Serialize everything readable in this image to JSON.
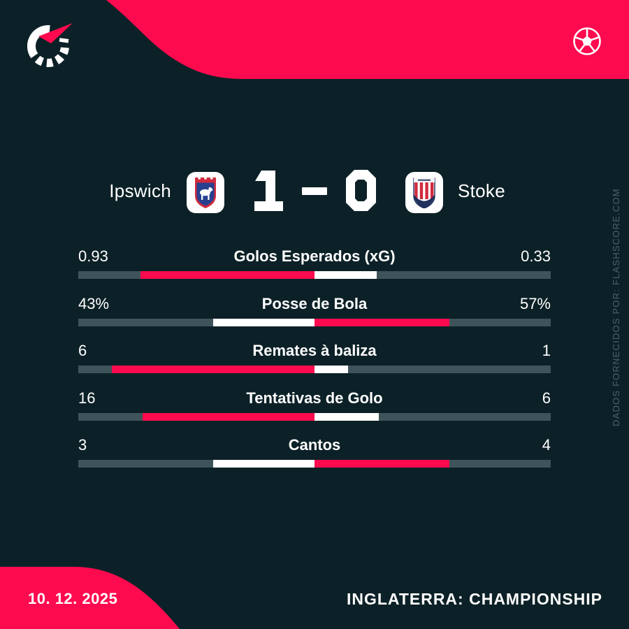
{
  "brand": {
    "logo_icon": "flashscore-spinner-logo",
    "ball_icon": "soccer-ball-icon"
  },
  "match": {
    "home_team": "Ipswich",
    "away_team": "Stoke",
    "home_score": "1",
    "score_separator": "-",
    "away_score": "0",
    "home_badge": "ipswich-town-crest",
    "away_badge": "stoke-city-crest"
  },
  "chart_data": {
    "type": "bar",
    "orientation": "horizontal-paired-from-center",
    "categories": [
      "Golos Esperados (xG)",
      "Posse de Bola",
      "Remates à baliza",
      "Tentativas de Golo",
      "Cantos"
    ],
    "series": [
      {
        "name": "Ipswich",
        "values": [
          0.93,
          43,
          6,
          16,
          3
        ],
        "display": [
          "0.93",
          "43%",
          "6",
          "16",
          "3"
        ]
      },
      {
        "name": "Stoke",
        "values": [
          0.33,
          57,
          1,
          6,
          4
        ],
        "display": [
          "0.33",
          "57%",
          "1",
          "6",
          "4"
        ]
      }
    ],
    "highlight_rule": "side with higher value filled with accent pink, other side filled white; each fill length = value/(home+away) of half track",
    "legend_position": "none",
    "grid": false
  },
  "footer": {
    "date": "10. 12. 2025",
    "competition": "INGLATERRA: CHAMPIONSHIP"
  },
  "credit": "DADOS FORNECIDOS POR: FLASHSCORE.COM",
  "colors": {
    "accent": "#FE0A4F",
    "background": "#0C2127",
    "bar_track": "#3E545A",
    "bar_fill_leader": "#FE0A4F",
    "bar_fill_other": "#FFFFFF",
    "muted_text": "#4A626B",
    "text": "#FFFFFF"
  }
}
